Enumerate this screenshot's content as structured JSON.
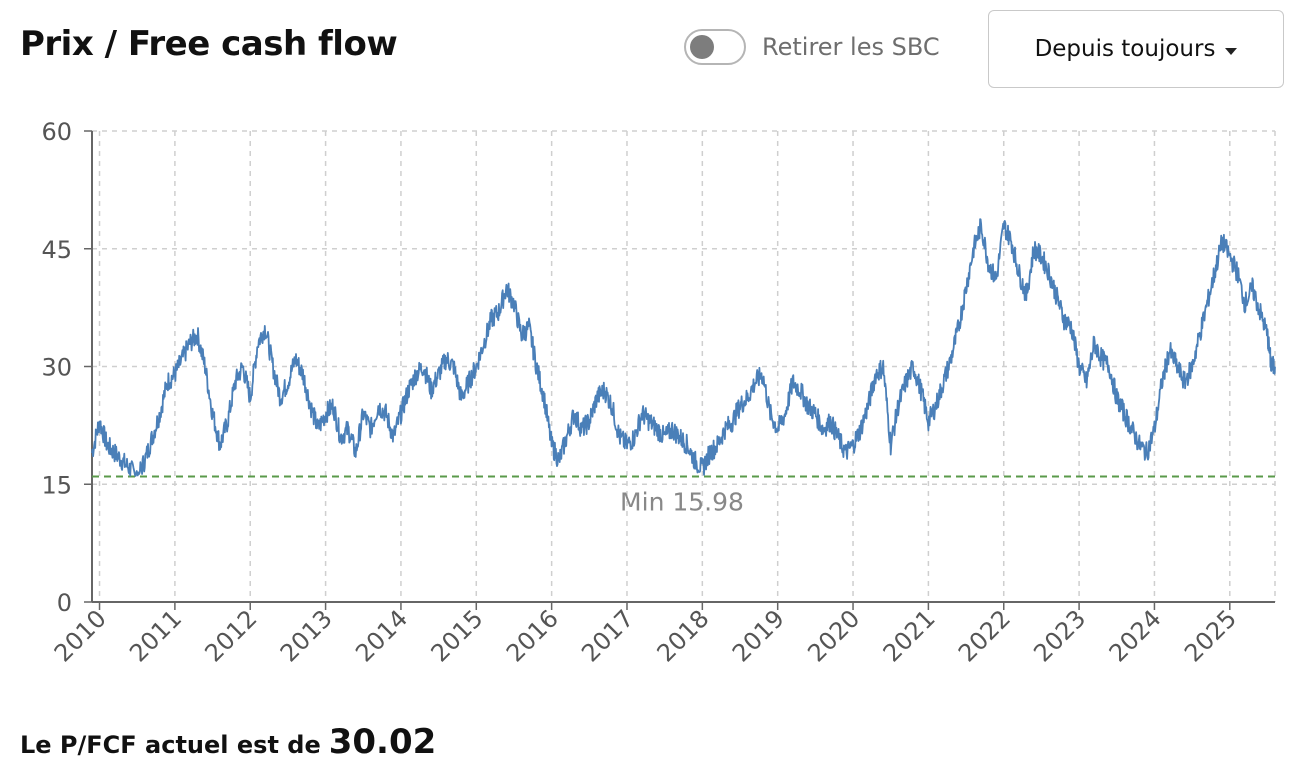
{
  "header": {
    "title": "Prix / Free cash flow",
    "toggle_label": "Retirer les SBC",
    "toggle_on": false,
    "range_selected": "Depuis toujours"
  },
  "footer": {
    "label": "Le P/FCF actuel est de",
    "value": "30.02"
  },
  "colors": {
    "line": "#4a7fb8",
    "min_line": "#5a9a4a",
    "grid": "#cfcfcf",
    "axis": "#666666"
  },
  "chart_data": {
    "type": "line",
    "title": "Prix / Free cash flow",
    "xlabel": "",
    "ylabel": "",
    "xlim": [
      2009.9,
      2025.6
    ],
    "ylim": [
      0,
      60
    ],
    "y_ticks": [
      0,
      15,
      30,
      45,
      60
    ],
    "x_ticks": [
      "2010",
      "2011",
      "2012",
      "2013",
      "2014",
      "2015",
      "2016",
      "2017",
      "2018",
      "2019",
      "2020",
      "2021",
      "2022",
      "2023",
      "2024",
      "2025"
    ],
    "grid": true,
    "annotation": {
      "label": "Min 15.98",
      "value": 15.98
    },
    "series": [
      {
        "x": [
          2009.9,
          2010.0,
          2010.1,
          2010.2,
          2010.3,
          2010.4,
          2010.5,
          2010.6,
          2010.7,
          2010.8,
          2010.9,
          2011.0,
          2011.1,
          2011.2,
          2011.3,
          2011.4,
          2011.5,
          2011.6,
          2011.7,
          2011.8,
          2011.9,
          2012.0,
          2012.1,
          2012.2,
          2012.3,
          2012.4,
          2012.5,
          2012.6,
          2012.7,
          2012.8,
          2012.9,
          2013.0,
          2013.1,
          2013.2,
          2013.3,
          2013.4,
          2013.5,
          2013.6,
          2013.7,
          2013.8,
          2013.9,
          2014.0,
          2014.1,
          2014.2,
          2014.3,
          2014.4,
          2014.5,
          2014.6,
          2014.7,
          2014.8,
          2014.9,
          2015.0,
          2015.1,
          2015.2,
          2015.3,
          2015.4,
          2015.5,
          2015.6,
          2015.7,
          2015.8,
          2015.9,
          2016.0,
          2016.1,
          2016.2,
          2016.3,
          2016.4,
          2016.5,
          2016.6,
          2016.7,
          2016.8,
          2016.9,
          2017.0,
          2017.1,
          2017.2,
          2017.3,
          2017.4,
          2017.5,
          2017.6,
          2017.7,
          2017.8,
          2017.9,
          2018.0,
          2018.1,
          2018.2,
          2018.3,
          2018.4,
          2018.5,
          2018.6,
          2018.7,
          2018.8,
          2018.9,
          2019.0,
          2019.1,
          2019.2,
          2019.3,
          2019.4,
          2019.5,
          2019.6,
          2019.7,
          2019.8,
          2019.9,
          2020.0,
          2020.1,
          2020.2,
          2020.3,
          2020.4,
          2020.5,
          2020.6,
          2020.7,
          2020.8,
          2020.9,
          2021.0,
          2021.1,
          2021.2,
          2021.3,
          2021.4,
          2021.5,
          2021.6,
          2021.7,
          2021.8,
          2021.9,
          2022.0,
          2022.1,
          2022.2,
          2022.3,
          2022.4,
          2022.5,
          2022.6,
          2022.7,
          2022.8,
          2022.9,
          2023.0,
          2023.1,
          2023.2,
          2023.3,
          2023.4,
          2023.5,
          2023.6,
          2023.7,
          2023.8,
          2023.9,
          2024.0,
          2024.1,
          2024.2,
          2024.3,
          2024.4,
          2024.5,
          2024.6,
          2024.7,
          2024.8,
          2024.9,
          2025.0,
          2025.1,
          2025.2,
          2025.3,
          2025.4,
          2025.5,
          2025.55,
          2025.6
        ],
        "y": [
          19,
          23,
          20,
          19,
          18,
          17,
          16,
          18,
          21,
          24,
          28,
          29,
          31,
          33,
          34,
          30,
          24,
          20,
          23,
          28,
          30,
          26,
          33,
          35,
          30,
          26,
          28,
          31,
          29,
          25,
          22,
          24,
          25,
          21,
          22,
          19,
          24,
          22,
          25,
          24,
          21,
          24,
          27,
          29,
          30,
          27,
          29,
          31,
          30,
          26,
          28,
          30,
          33,
          36,
          37,
          40,
          38,
          34,
          35,
          30,
          26,
          20,
          18,
          21,
          24,
          22,
          23,
          26,
          27,
          25,
          21,
          20,
          21,
          24,
          23,
          22,
          21,
          22,
          21,
          20,
          18,
          17,
          19,
          20,
          22,
          23,
          25,
          26,
          28,
          29,
          24,
          22,
          24,
          28,
          27,
          25,
          24,
          22,
          23,
          21,
          19,
          20,
          22,
          25,
          29,
          30,
          20,
          25,
          28,
          30,
          27,
          23,
          25,
          28,
          31,
          35,
          40,
          45,
          48,
          43,
          41,
          48,
          46,
          42,
          39,
          45,
          44,
          42,
          39,
          36,
          35,
          30,
          28,
          33,
          31,
          30,
          26,
          24,
          22,
          20,
          19,
          22,
          28,
          32,
          30,
          28,
          30,
          34,
          38,
          42,
          46,
          44,
          42,
          38,
          40,
          37,
          34,
          30,
          30
        ]
      }
    ]
  }
}
